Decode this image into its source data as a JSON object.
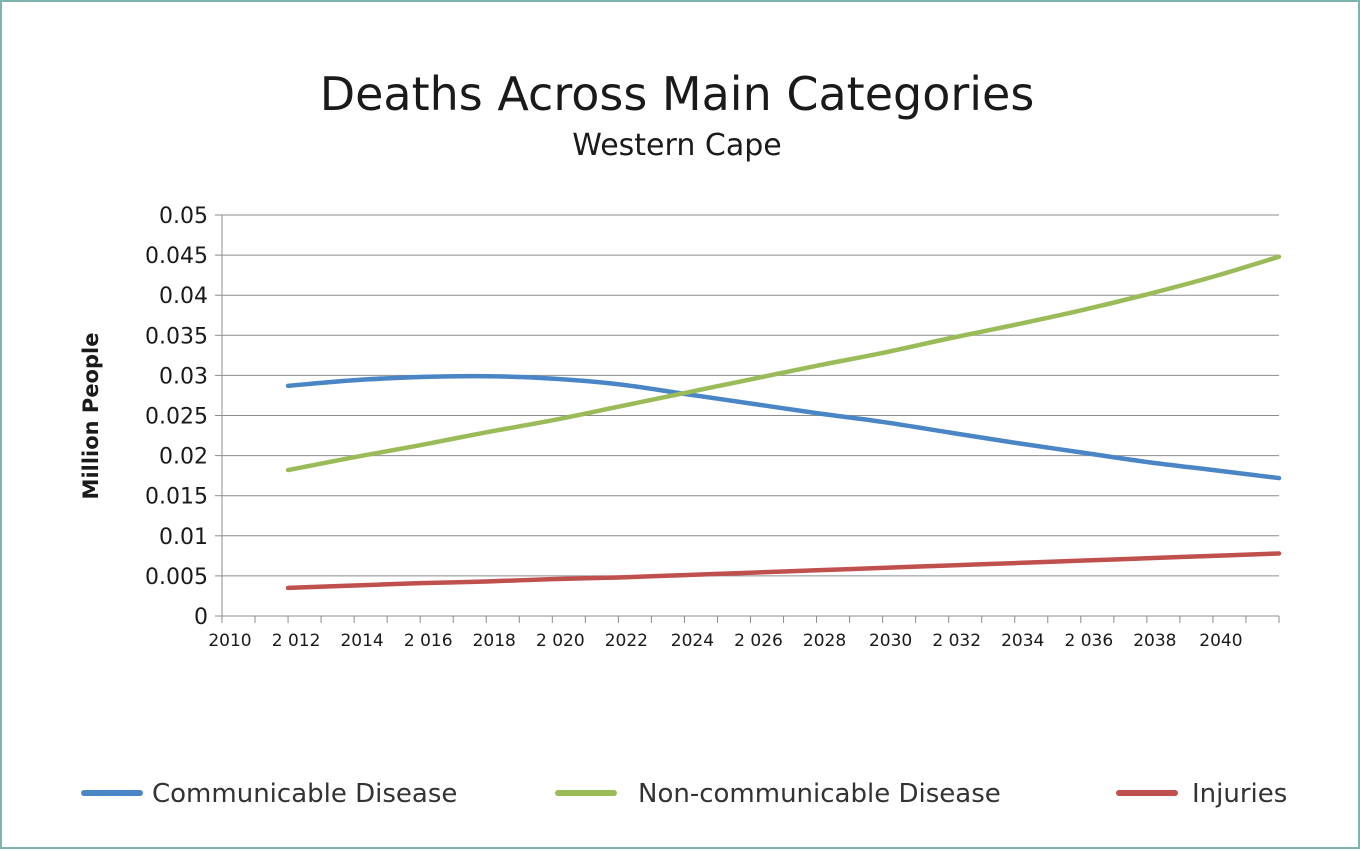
{
  "chart_data": {
    "type": "line",
    "title": "Deaths Across Main Categories",
    "subtitle": "Western Cape",
    "ylabel": "Million People",
    "xlabel": "",
    "ylim": [
      0,
      0.05
    ],
    "y_ticks": [
      "0",
      "0.005",
      "0.01",
      "0.015",
      "0.02",
      "0.025",
      "0.03",
      "0.035",
      "0.04",
      "0.045",
      "0.05"
    ],
    "x_tick_labels": [
      "2010",
      "2 012",
      "2014",
      "2 016",
      "2018",
      "2 020",
      "2022",
      "2024",
      "2 026",
      "2028",
      "2030",
      "2 032",
      "2034",
      "2 036",
      "2038",
      "2040"
    ],
    "x_range": [
      2010,
      2042
    ],
    "grid": true,
    "legend_position": "bottom",
    "x": [
      2012,
      2014,
      2016,
      2018,
      2020,
      2022,
      2024,
      2026,
      2028,
      2030,
      2032,
      2034,
      2036,
      2038,
      2040,
      2042
    ],
    "series": [
      {
        "name": "Communicable Disease",
        "color": "#4a86c5",
        "values": [
          0.0287,
          0.0294,
          0.0298,
          0.0299,
          0.0296,
          0.0289,
          0.0277,
          0.0265,
          0.0253,
          0.0242,
          0.0229,
          0.0216,
          0.0204,
          0.0192,
          0.0182,
          0.0172
        ]
      },
      {
        "name": "Non-communicable Disease",
        "color": "#9bbb59",
        "values": [
          0.0182,
          0.0198,
          0.0213,
          0.0229,
          0.0244,
          0.0261,
          0.0278,
          0.0295,
          0.0312,
          0.0328,
          0.0346,
          0.0363,
          0.0381,
          0.0401,
          0.0423,
          0.0448
        ]
      },
      {
        "name": "Injuries",
        "color": "#c0504d",
        "values": [
          0.0035,
          0.0038,
          0.0041,
          0.0043,
          0.0046,
          0.0048,
          0.0051,
          0.0054,
          0.0057,
          0.006,
          0.0063,
          0.0066,
          0.0069,
          0.0072,
          0.0075,
          0.0078
        ]
      }
    ]
  }
}
